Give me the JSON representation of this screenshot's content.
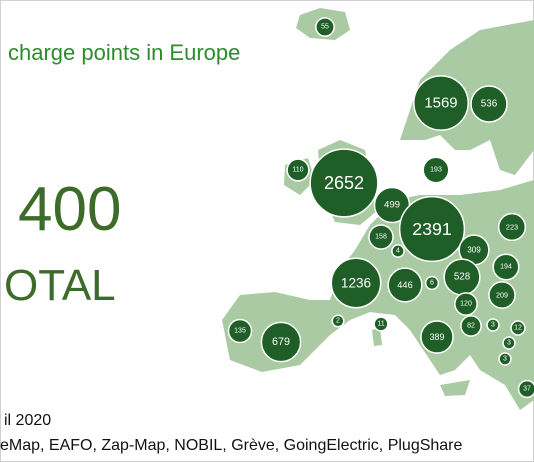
{
  "title": "charge points in Europe",
  "total": {
    "number": "400",
    "label": "OTAL"
  },
  "bubbles": [
    {
      "value": 55
    },
    {
      "value": 1569
    },
    {
      "value": 536
    },
    {
      "value": 110
    },
    {
      "value": 2652
    },
    {
      "value": 193
    },
    {
      "value": 499
    },
    {
      "value": 2391
    },
    {
      "value": 223
    },
    {
      "value": 158
    },
    {
      "value": 4
    },
    {
      "value": 309
    },
    {
      "value": 194
    },
    {
      "value": 1236
    },
    {
      "value": 446
    },
    {
      "value": 6
    },
    {
      "value": 528
    },
    {
      "value": 209
    },
    {
      "value": 120
    },
    {
      "value": 135
    },
    {
      "value": 679
    },
    {
      "value": 2
    },
    {
      "value": 11
    },
    {
      "value": 389
    },
    {
      "value": 82
    },
    {
      "value": 3
    },
    {
      "value": 12
    },
    {
      "value": 3
    },
    {
      "value": 3
    },
    {
      "value": 37
    }
  ],
  "footer": {
    "date": "il 2020",
    "sources": "eMap, EAFO, Zap-Map, NOBIL, Grève, GoingElectric, PlugShare"
  }
}
